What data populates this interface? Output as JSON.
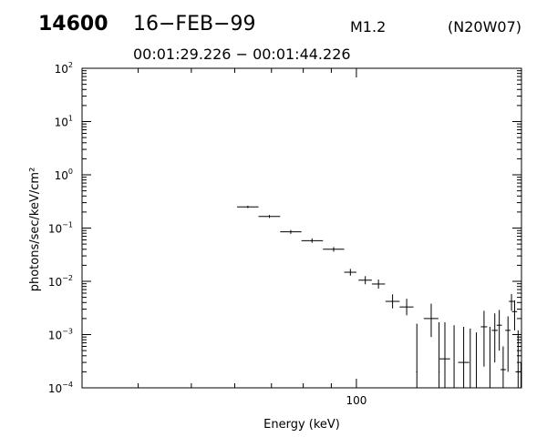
{
  "header": {
    "event_id": "14600",
    "date": "16−FEB−99",
    "flare_class": "M1.2",
    "location": "(N20W07)",
    "time_range": "00:01:29.226 − 00:01:44.226"
  },
  "chart_data": {
    "type": "scatter",
    "xlabel": "Energy (keV)",
    "ylabel": "photons/sec/keV/cm²",
    "x_scale": "log",
    "y_scale": "log",
    "xlim": [
      31.6,
      200
    ],
    "ylim": [
      0.0001,
      100
    ],
    "x_tick_labels": [
      {
        "value": 100,
        "label": "100"
      }
    ],
    "y_tick_labels": [
      {
        "value": 100,
        "base": "10",
        "exp": "2"
      },
      {
        "value": 10,
        "base": "10",
        "exp": "1"
      },
      {
        "value": 1,
        "base": "10",
        "exp": "0"
      },
      {
        "value": 0.1,
        "base": "10",
        "exp": "−1"
      },
      {
        "value": 0.01,
        "base": "10",
        "exp": "−2"
      },
      {
        "value": 0.001,
        "base": "10",
        "exp": "−3"
      },
      {
        "value": 0.0001,
        "base": "10",
        "exp": "−4"
      }
    ],
    "grid": false,
    "series": [
      {
        "color": "#000000",
        "points": [
          {
            "x": 63.4,
            "xlo": 60.6,
            "xhi": 66.3,
            "y": 0.25,
            "ylo": 0.237,
            "yhi": 0.263
          },
          {
            "x": 69.4,
            "xlo": 66.3,
            "xhi": 72.6,
            "y": 0.165,
            "ylo": 0.155,
            "yhi": 0.176
          },
          {
            "x": 75.9,
            "xlo": 72.6,
            "xhi": 79.4,
            "y": 0.085,
            "ylo": 0.078,
            "yhi": 0.092
          },
          {
            "x": 83.0,
            "xlo": 79.4,
            "xhi": 86.9,
            "y": 0.058,
            "ylo": 0.053,
            "yhi": 0.064
          },
          {
            "x": 90.9,
            "xlo": 86.9,
            "xhi": 95.0,
            "y": 0.04,
            "ylo": 0.036,
            "yhi": 0.044
          },
          {
            "x": 97.5,
            "xlo": 95.0,
            "xhi": 100.0,
            "y": 0.0148,
            "ylo": 0.0128,
            "yhi": 0.0171
          },
          {
            "x": 103.8,
            "xlo": 100.9,
            "xhi": 106.7,
            "y": 0.0105,
            "ylo": 0.0088,
            "yhi": 0.0125
          },
          {
            "x": 109.7,
            "xlo": 106.7,
            "xhi": 112.8,
            "y": 0.0089,
            "ylo": 0.0073,
            "yhi": 0.0108
          },
          {
            "x": 116.4,
            "xlo": 113.0,
            "xhi": 119.9,
            "y": 0.0042,
            "ylo": 0.0031,
            "yhi": 0.0057
          },
          {
            "x": 123.5,
            "xlo": 119.9,
            "xhi": 127.1,
            "y": 0.0033,
            "ylo": 0.0023,
            "yhi": 0.0047
          },
          {
            "x": 128.9,
            "xlo": 128.6,
            "xhi": 129.2,
            "y": 0.0002,
            "ylo": 0.0001,
            "yhi": 0.0016
          },
          {
            "x": 136.9,
            "xlo": 132.7,
            "xhi": 141.1,
            "y": 0.002,
            "ylo": 0.0009,
            "yhi": 0.0038
          },
          {
            "x": 141.5,
            "xlo": 141.3,
            "xhi": 141.8,
            "y": 0.0002,
            "ylo": 0.0001,
            "yhi": 0.0017
          },
          {
            "x": 145.0,
            "xlo": 141.8,
            "xhi": 148.2,
            "y": 0.00035,
            "ylo": 0.0001,
            "yhi": 0.0017
          },
          {
            "x": 150.7,
            "xlo": 150.5,
            "xhi": 150.9,
            "y": 0.0002,
            "ylo": 0.0001,
            "yhi": 0.0015
          },
          {
            "x": 156.9,
            "xlo": 153.3,
            "xhi": 160.6,
            "y": 0.0003,
            "ylo": 0.0001,
            "yhi": 0.0014
          },
          {
            "x": 161.3,
            "xlo": 161.1,
            "xhi": 161.5,
            "y": 0.0002,
            "ylo": 0.0001,
            "yhi": 0.0013
          },
          {
            "x": 165.5,
            "xlo": 165.3,
            "xhi": 165.7,
            "y": 0.0002,
            "ylo": 0.0001,
            "yhi": 0.0011
          },
          {
            "x": 170.9,
            "xlo": 168.6,
            "xhi": 173.2,
            "y": 0.0014,
            "ylo": 0.00025,
            "yhi": 0.0028
          },
          {
            "x": 175.2,
            "xlo": 175.0,
            "xhi": 175.4,
            "y": 0.0002,
            "ylo": 0.0001,
            "yhi": 0.0014
          },
          {
            "x": 178.8,
            "xlo": 176.6,
            "xhi": 181.0,
            "y": 0.0012,
            "ylo": 0.0003,
            "yhi": 0.0025
          },
          {
            "x": 182.2,
            "xlo": 180.2,
            "xhi": 184.2,
            "y": 0.0015,
            "ylo": 0.0005,
            "yhi": 0.0029
          },
          {
            "x": 185.2,
            "xlo": 183.2,
            "xhi": 187.3,
            "y": 0.00022,
            "ylo": 0.0001,
            "yhi": 0.0006
          },
          {
            "x": 189.0,
            "xlo": 186.9,
            "xhi": 191.0,
            "y": 0.0012,
            "ylo": 0.0002,
            "yhi": 0.0022
          },
          {
            "x": 191.8,
            "xlo": 189.7,
            "xhi": 193.9,
            "y": 0.0042,
            "ylo": 0.0028,
            "yhi": 0.0058
          },
          {
            "x": 194.3,
            "xlo": 192.2,
            "xhi": 196.4,
            "y": 0.0027,
            "ylo": 0.0012,
            "yhi": 0.0044
          },
          {
            "x": 197.2,
            "xlo": 195.1,
            "xhi": 199.3,
            "y": 0.0002,
            "ylo": 0.0001,
            "yhi": 0.0012
          },
          {
            "x": 199.6,
            "xlo": 199.4,
            "xhi": 199.8,
            "y": 0.0002,
            "ylo": 0.0001,
            "yhi": 0.0003
          }
        ]
      }
    ]
  }
}
